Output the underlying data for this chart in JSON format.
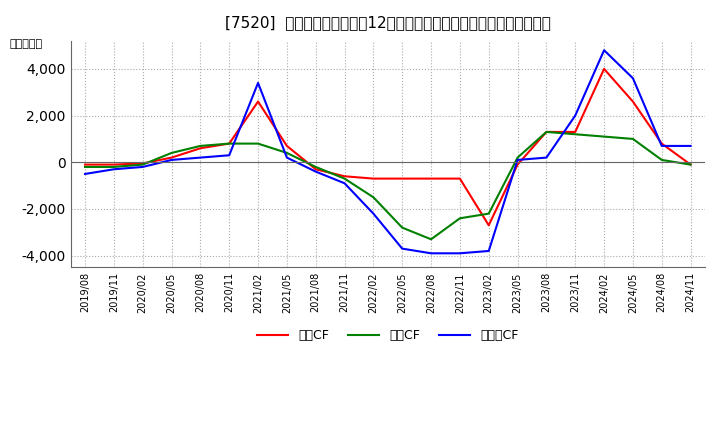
{
  "title": "[7520]  キャッシュフローの12か月移動合計の対前年同期増減額の推移",
  "ylabel": "（百万円）",
  "ylim": [
    -4500,
    5200
  ],
  "yticks": [
    -4000,
    -2000,
    0,
    2000,
    4000
  ],
  "background_color": "#ffffff",
  "plot_bg_color": "#ffffff",
  "grid_color": "#aaaaaa",
  "x_labels": [
    "2019/08",
    "2019/11",
    "2020/02",
    "2020/05",
    "2020/08",
    "2020/11",
    "2021/02",
    "2021/05",
    "2021/08",
    "2021/11",
    "2022/02",
    "2022/05",
    "2022/08",
    "2022/11",
    "2023/02",
    "2023/05",
    "2023/08",
    "2023/11",
    "2024/02",
    "2024/05",
    "2024/08",
    "2024/11"
  ],
  "operating_cf": [
    -100,
    -100,
    -50,
    200,
    600,
    800,
    2600,
    700,
    -300,
    -600,
    -700,
    -700,
    -700,
    -700,
    -2700,
    -100,
    1300,
    1300,
    4000,
    2600,
    800,
    -100
  ],
  "investing_cf": [
    -200,
    -200,
    -100,
    400,
    700,
    800,
    800,
    400,
    -200,
    -700,
    -1500,
    -2800,
    -3300,
    -2400,
    -2200,
    200,
    1300,
    1200,
    1100,
    1000,
    100,
    -100
  ],
  "free_cf": [
    -500,
    -300,
    -200,
    100,
    200,
    300,
    3400,
    200,
    -400,
    -900,
    -2200,
    -3700,
    -3900,
    -3900,
    -3800,
    100,
    200,
    2000,
    4800,
    3600,
    700,
    700
  ],
  "operating_color": "#ff0000",
  "investing_color": "#008000",
  "free_color": "#0000ff",
  "legend_labels": [
    "営業CF",
    "投資CF",
    "フリーCF"
  ]
}
